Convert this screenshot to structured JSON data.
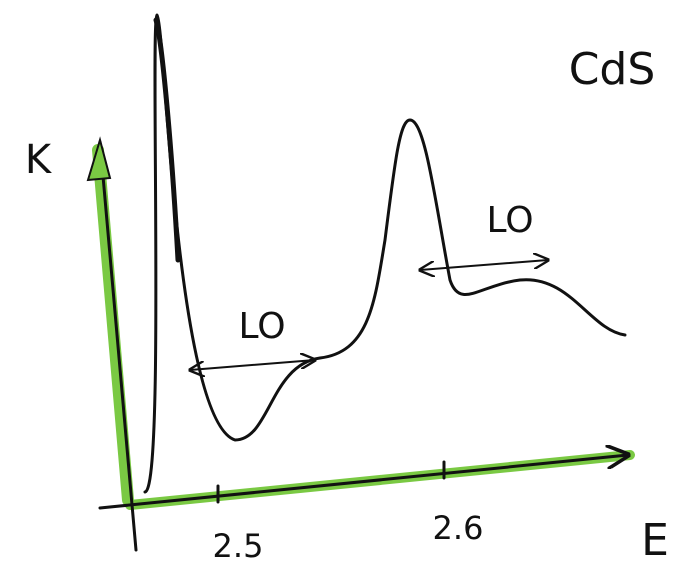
{
  "title": "CdS",
  "axes": {
    "y_label": "K",
    "x_label": "E",
    "x_ticks": [
      "2.5",
      "2.6"
    ]
  },
  "annotations": [
    "LO",
    "LO"
  ]
}
